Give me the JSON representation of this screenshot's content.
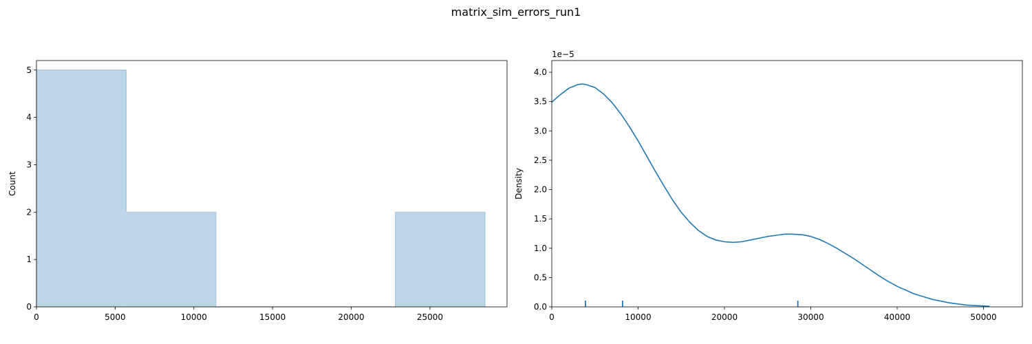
{
  "figure": {
    "title": "matrix_sim_errors_run1"
  },
  "chart_data": [
    {
      "type": "histogram",
      "xlabel": "",
      "ylabel": "Count",
      "xlim": [
        0,
        29900
      ],
      "ylim": [
        0,
        5.2
      ],
      "xticks": [
        0,
        5000,
        10000,
        15000,
        20000,
        25000
      ],
      "yticks": [
        0,
        1,
        2,
        3,
        4,
        5
      ],
      "bins": [
        {
          "x0": 0,
          "x1": 5700,
          "count": 5
        },
        {
          "x0": 5700,
          "x1": 11400,
          "count": 2
        },
        {
          "x0": 11400,
          "x1": 17100,
          "count": 0
        },
        {
          "x0": 17100,
          "x1": 22800,
          "count": 0
        },
        {
          "x0": 22800,
          "x1": 28500,
          "count": 2
        }
      ],
      "colors": {
        "fill": "#bcd5e7",
        "edge": "#a6c8e0"
      }
    },
    {
      "type": "line",
      "xlabel": "",
      "ylabel": "Density",
      "y_scale_label": "1e−5",
      "xlim": [
        0,
        54500
      ],
      "ylim": [
        0,
        4.2
      ],
      "xticks": [
        0,
        10000,
        20000,
        30000,
        40000,
        50000
      ],
      "yticks": [
        0.0,
        0.5,
        1.0,
        1.5,
        2.0,
        2.5,
        3.0,
        3.5,
        4.0
      ],
      "series": [
        {
          "x": [
            0,
            1000,
            2000,
            3000,
            3500,
            4000,
            5000,
            6000,
            7000,
            8000,
            9000,
            10000,
            11000,
            12000,
            13000,
            14000,
            15000,
            16000,
            17000,
            18000,
            19000,
            20000,
            21000,
            22000,
            23000,
            24000,
            25000,
            26000,
            27000,
            27800,
            29000,
            30000,
            31000,
            32000,
            33000,
            34000,
            35000,
            36000,
            37000,
            38000,
            39000,
            40000,
            42000,
            44000,
            46000,
            48000,
            50000,
            50700
          ],
          "y": [
            3.49,
            3.62,
            3.73,
            3.79,
            3.8,
            3.79,
            3.74,
            3.63,
            3.48,
            3.29,
            3.07,
            2.83,
            2.57,
            2.31,
            2.06,
            1.82,
            1.61,
            1.44,
            1.3,
            1.2,
            1.14,
            1.11,
            1.1,
            1.11,
            1.14,
            1.17,
            1.2,
            1.22,
            1.24,
            1.24,
            1.23,
            1.2,
            1.15,
            1.08,
            1.0,
            0.91,
            0.82,
            0.72,
            0.62,
            0.52,
            0.43,
            0.35,
            0.22,
            0.13,
            0.07,
            0.03,
            0.015,
            0.01
          ]
        }
      ],
      "rug": [
        3900,
        8200,
        28500
      ],
      "colors": {
        "line": "#1f77b4",
        "rug": "#1f77b4"
      }
    }
  ]
}
